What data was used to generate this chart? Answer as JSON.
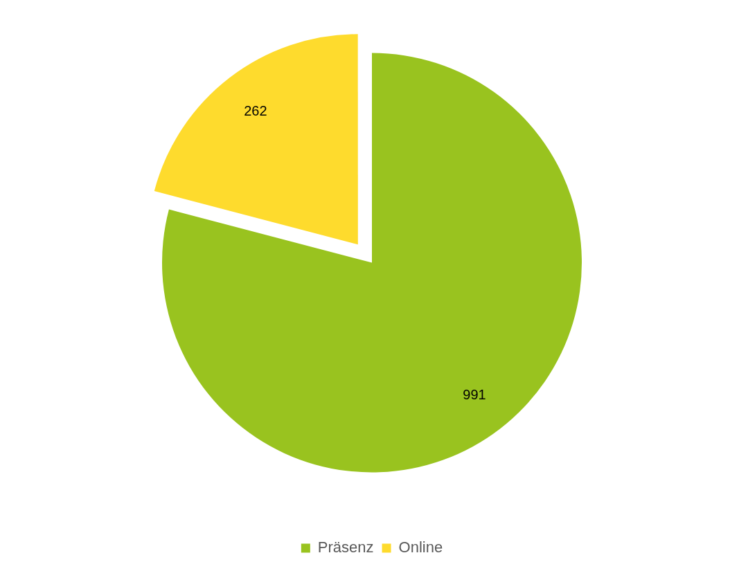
{
  "chart_data": {
    "type": "pie",
    "categories": [
      "Präsenz",
      "Online"
    ],
    "values": [
      991,
      262
    ],
    "colors": [
      "#99c31f",
      "#fedb2d"
    ],
    "data_labels": true,
    "legend": "bottom"
  }
}
